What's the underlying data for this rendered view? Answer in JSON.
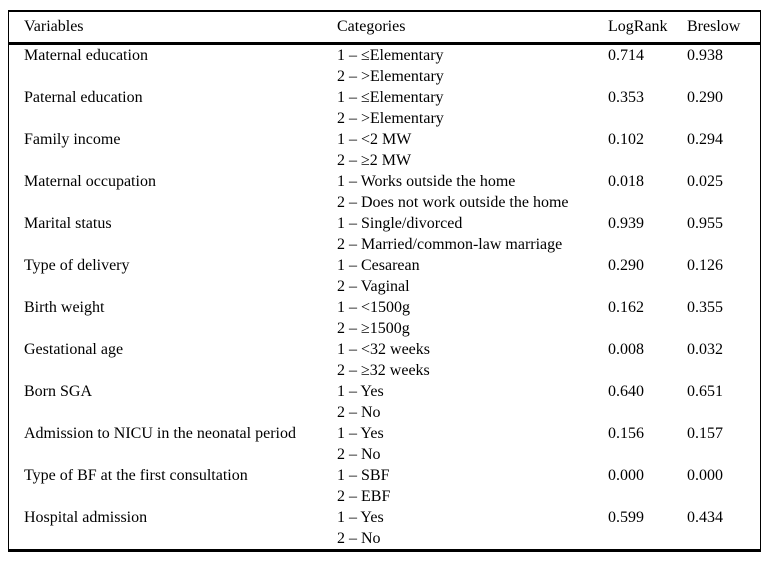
{
  "table": {
    "headers": [
      "Variables",
      "Categories",
      "LogRank",
      "Breslow"
    ],
    "rows": [
      {
        "variable": "Maternal education",
        "categories": [
          "1 – ≤Elementary",
          "2 – >Elementary"
        ],
        "logrank": "0.714",
        "breslow": "0.938"
      },
      {
        "variable": "Paternal education",
        "categories": [
          "1 – ≤Elementary",
          "2 – >Elementary"
        ],
        "logrank": "0.353",
        "breslow": "0.290"
      },
      {
        "variable": "Family income",
        "categories": [
          "1 – <2 MW",
          "2 – ≥2 MW"
        ],
        "logrank": "0.102",
        "breslow": "0.294"
      },
      {
        "variable": "Maternal occupation",
        "categories": [
          "1 – Works outside the home",
          "2 – Does not work outside the home"
        ],
        "logrank": "0.018",
        "breslow": "0.025"
      },
      {
        "variable": "Marital status",
        "categories": [
          "1 – Single/divorced",
          "2 – Married/common-law marriage"
        ],
        "logrank": "0.939",
        "breslow": "0.955"
      },
      {
        "variable": "Type of delivery",
        "categories": [
          "1 – Cesarean",
          "2 – Vaginal"
        ],
        "logrank": "0.290",
        "breslow": "0.126"
      },
      {
        "variable": "Birth weight",
        "categories": [
          "1 – <1500g",
          "2 – ≥1500g"
        ],
        "logrank": "0.162",
        "breslow": "0.355"
      },
      {
        "variable": "Gestational age",
        "categories": [
          "1 – <32 weeks",
          "2 – ≥32 weeks"
        ],
        "logrank": "0.008",
        "breslow": "0.032"
      },
      {
        "variable": "Born SGA",
        "categories": [
          "1 – Yes",
          "2 – No"
        ],
        "logrank": "0.640",
        "breslow": "0.651"
      },
      {
        "variable": "Admission to NICU in the neonatal period",
        "categories": [
          "1 – Yes",
          "2 – No"
        ],
        "logrank": "0.156",
        "breslow": "0.157"
      },
      {
        "variable": "Type of BF at the first consultation",
        "categories": [
          "1 – SBF",
          "2 – EBF"
        ],
        "logrank": "0.000",
        "breslow": "0.000"
      },
      {
        "variable": "Hospital admission",
        "categories": [
          "1 – Yes",
          "2 – No"
        ],
        "logrank": "0.599",
        "breslow": "0.434"
      }
    ]
  },
  "colors": {
    "text": "#000000",
    "background": "#ffffff",
    "rule": "#000000"
  }
}
